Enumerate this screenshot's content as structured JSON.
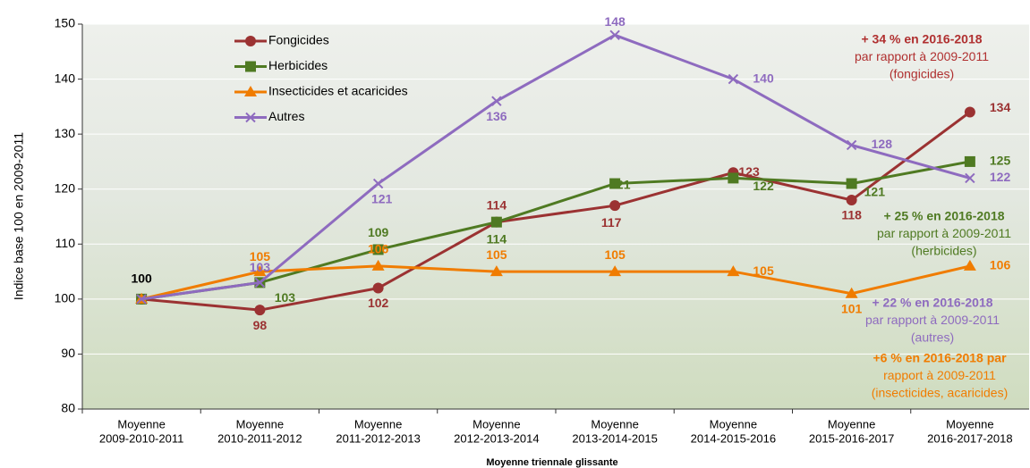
{
  "chart_data": {
    "type": "line",
    "x_label": "Moyenne triennale glissante",
    "y_label": "Indice base 100 en 2009-2011",
    "categories": [
      [
        "Moyenne",
        "2009-2010-2011"
      ],
      [
        "Moyenne",
        "2010-2011-2012"
      ],
      [
        "Moyenne",
        "2011-2012-2013"
      ],
      [
        "Moyenne",
        "2012-2013-2014"
      ],
      [
        "Moyenne",
        "2013-2014-2015"
      ],
      [
        "Moyenne",
        "2014-2015-2016"
      ],
      [
        "Moyenne",
        "2015-2016-2017"
      ],
      [
        "Moyenne",
        "2016-2017-2018"
      ]
    ],
    "series": [
      {
        "name": "Fongicides",
        "color": "#9b3232",
        "marker": "circle",
        "values": [
          100,
          98,
          102,
          114,
          117,
          123,
          118,
          134
        ]
      },
      {
        "name": "Herbicides",
        "color": "#4f7a22",
        "marker": "square",
        "values": [
          100,
          103,
          109,
          114,
          121,
          122,
          121,
          125
        ]
      },
      {
        "name": "Insecticides et acaricides",
        "color": "#f07c00",
        "marker": "triangle",
        "values": [
          100,
          105,
          106,
          105,
          105,
          105,
          101,
          106
        ]
      },
      {
        "name": "Autres",
        "color": "#8e6bbf",
        "marker": "x",
        "values": [
          100,
          103,
          121,
          136,
          148,
          140,
          128,
          122
        ]
      }
    ],
    "ylim": [
      80,
      150
    ],
    "yticks": [
      80,
      90,
      100,
      110,
      120,
      130,
      140,
      150
    ],
    "grid": true,
    "annotations": [
      {
        "color": "#b03030",
        "lines": [
          "+ 34 % en 2016-2018",
          "par rapport à 2009-2011",
          "(fongicides)"
        ]
      },
      {
        "color": "#4f7a22",
        "lines": [
          "+ 25 % en 2016-2018",
          "par rapport à 2009-2011",
          "(herbicides)"
        ]
      },
      {
        "color": "#8e6bbf",
        "lines": [
          "+ 22 % en 2016-2018",
          "par rapport à 2009-2011",
          "(autres)"
        ]
      },
      {
        "color": "#f07c00",
        "lines": [
          "+6 % en 2016-2018 par",
          "rapport à 2009-2011",
          "(insecticides, acaricides)"
        ]
      }
    ]
  }
}
